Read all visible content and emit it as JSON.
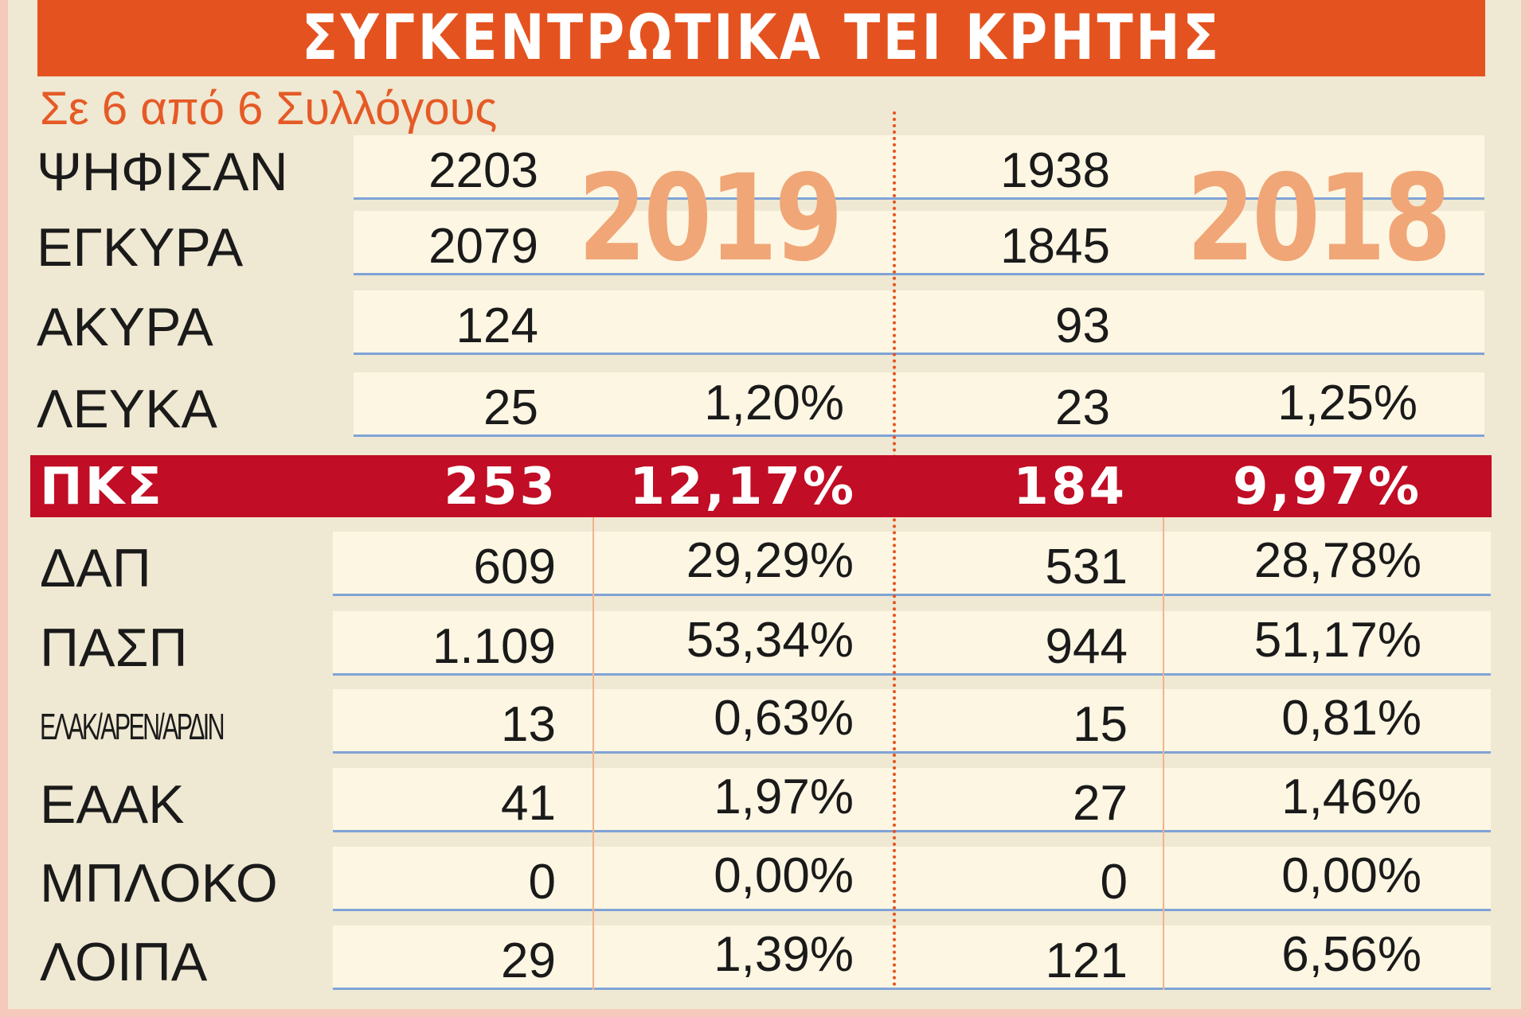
{
  "title": "ΣΥΓΚΕΝΤΡΩΤΙΚΑ ΤΕΙ ΚΡΗΤΗΣ",
  "subtitle": "Σε 6 από 6 Συλλόγους",
  "years": [
    "2019",
    "2018"
  ],
  "colors": {
    "title_bg": "#e4531f",
    "pks_bg": "#c10d25",
    "year_text": "#f0a676",
    "row_bg": "#fdf6e3",
    "row_line": "#7fa3d6"
  },
  "chart_data": {
    "type": "table",
    "title": "ΣΥΓΚΕΝΤΡΩΤΙΚΑ ΤΕΙ ΚΡΗΤΗΣ",
    "subtitle": "Σε 6 από 6 Συλλόγους",
    "columns": [
      "2019",
      "2019 %",
      "2018",
      "2018 %"
    ],
    "summary_rows": [
      {
        "label": "ΨΗΦΙΣΑΝ",
        "v2019": "2203",
        "p2019": "",
        "v2018": "1938",
        "p2018": ""
      },
      {
        "label": "ΕΓΚΥΡΑ",
        "v2019": "2079",
        "p2019": "",
        "v2018": "1845",
        "p2018": ""
      },
      {
        "label": "ΑΚΥΡΑ",
        "v2019": "124",
        "p2019": "",
        "v2018": "93",
        "p2018": ""
      },
      {
        "label": "ΛΕΥΚΑ",
        "v2019": "25",
        "p2019": "1,20%",
        "v2018": "23",
        "p2018": "1,25%"
      }
    ],
    "highlight_row": {
      "label": "ΠΚΣ",
      "v2019": "253",
      "p2019": "12,17%",
      "v2018": "184",
      "p2018": "9,97%"
    },
    "party_rows": [
      {
        "label": "ΔΑΠ",
        "v2019": "609",
        "p2019": "29,29%",
        "v2018": "531",
        "p2018": "28,78%"
      },
      {
        "label": "ΠΑΣΠ",
        "v2019": "1.109",
        "p2019": "53,34%",
        "v2018": "944",
        "p2018": "51,17%"
      },
      {
        "label": "ΕΛΑΚ/ΑΡΕΝ/ΑΡΔΙΝ",
        "v2019": "13",
        "p2019": "0,63%",
        "v2018": "15",
        "p2018": "0,81%"
      },
      {
        "label": "ΕΑΑΚ",
        "v2019": "41",
        "p2019": "1,97%",
        "v2018": "27",
        "p2018": "1,46%"
      },
      {
        "label": "ΜΠΛΟΚΟ",
        "v2019": "0",
        "p2019": "0,00%",
        "v2018": "0",
        "p2018": "0,00%"
      },
      {
        "label": "ΛΟΙΠΑ",
        "v2019": "29",
        "p2019": "1,39%",
        "v2018": "121",
        "p2018": "6,56%"
      }
    ]
  }
}
